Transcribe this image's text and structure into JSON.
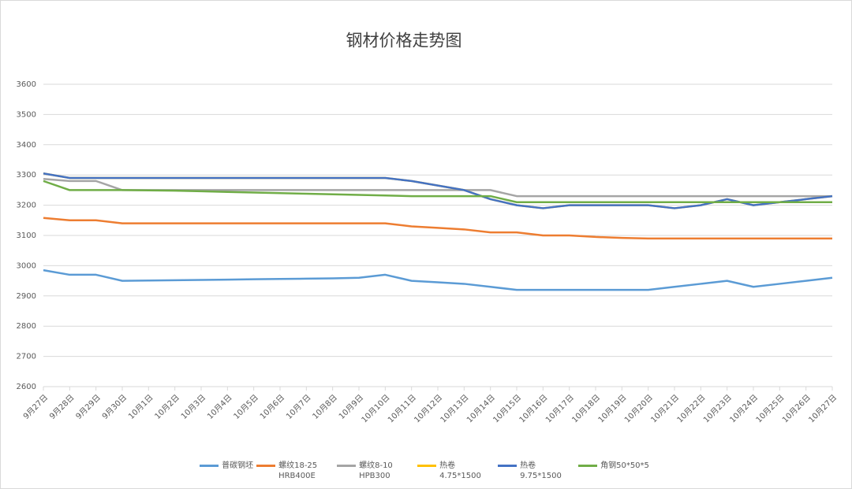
{
  "chart_data": {
    "type": "line",
    "title": "钢材价格走势图",
    "categories": [
      "9月27日",
      "9月28日",
      "9月29日",
      "9月30日",
      "10月1日",
      "10月2日",
      "10月3日",
      "10月4日",
      "10月5日",
      "10月6日",
      "10月7日",
      "10月8日",
      "10月9日",
      "10月10日",
      "10月11日",
      "10月12日",
      "10月13日",
      "10月14日",
      "10月15日",
      "10月16日",
      "10月17日",
      "10月18日",
      "10月19日",
      "10月20日",
      "10月21日",
      "10月22日",
      "10月23日",
      "10月24日",
      "10月25日",
      "10月26日",
      "10月27日"
    ],
    "series": [
      {
        "name": "普碳钢坯",
        "color": "#5b9bd5",
        "values": [
          2985,
          2970,
          2970,
          2950,
          2951,
          2952,
          2953,
          2954,
          2955,
          2956,
          2957,
          2958,
          2960,
          2970,
          2950,
          2945,
          2940,
          2930,
          2920,
          2920,
          2920,
          2920,
          2920,
          2920,
          2930,
          2940,
          2950,
          2930,
          2940,
          2950,
          2960
        ]
      },
      {
        "name": "螺纹18-25 HRB400E",
        "color": "#ed7d31",
        "values": [
          3158,
          3150,
          3150,
          3140,
          3140,
          3140,
          3140,
          3140,
          3140,
          3140,
          3140,
          3140,
          3140,
          3140,
          3130,
          3125,
          3120,
          3110,
          3110,
          3100,
          3100,
          3095,
          3092,
          3090,
          3090,
          3090,
          3090,
          3090,
          3090,
          3090,
          3090
        ]
      },
      {
        "name": "螺纹8-10 HPB300",
        "color": "#a5a5a5",
        "values": [
          3287,
          3280,
          3280,
          3250,
          3250,
          3250,
          3250,
          3250,
          3250,
          3250,
          3250,
          3250,
          3250,
          3250,
          3250,
          3250,
          3250,
          3250,
          3230,
          3230,
          3230,
          3230,
          3230,
          3230,
          3230,
          3230,
          3230,
          3230,
          3230,
          3230,
          3230
        ]
      },
      {
        "name": "热卷4.75*1500",
        "color": "#ffc000",
        "values": [
          3305,
          3290,
          3290,
          3290,
          3290,
          3290,
          3290,
          3290,
          3290,
          3290,
          3290,
          3290,
          3290,
          3290,
          3280,
          3265,
          3250,
          3220,
          3200,
          3190,
          3200,
          3200,
          3200,
          3200,
          3190,
          3200,
          3220,
          3200,
          3210,
          3220,
          3230
        ]
      },
      {
        "name": "热卷9.75*1500",
        "color": "#4472c4",
        "values": [
          3305,
          3290,
          3290,
          3290,
          3290,
          3290,
          3290,
          3290,
          3290,
          3290,
          3290,
          3290,
          3290,
          3290,
          3280,
          3265,
          3250,
          3220,
          3200,
          3190,
          3200,
          3200,
          3200,
          3200,
          3190,
          3200,
          3220,
          3200,
          3210,
          3220,
          3230
        ]
      },
      {
        "name": "角钢50*50*5",
        "color": "#70ad47",
        "values": [
          3280,
          3250,
          3250,
          3250,
          3249,
          3248,
          3246,
          3244,
          3242,
          3240,
          3238,
          3236,
          3234,
          3232,
          3230,
          3230,
          3230,
          3230,
          3210,
          3210,
          3210,
          3210,
          3210,
          3210,
          3210,
          3210,
          3210,
          3210,
          3210,
          3210,
          3210
        ]
      }
    ],
    "ylim": [
      2600,
      3600
    ],
    "yticks": [
      2600,
      2700,
      2800,
      2900,
      3000,
      3100,
      3200,
      3300,
      3400,
      3500,
      3600
    ],
    "grid": true
  }
}
